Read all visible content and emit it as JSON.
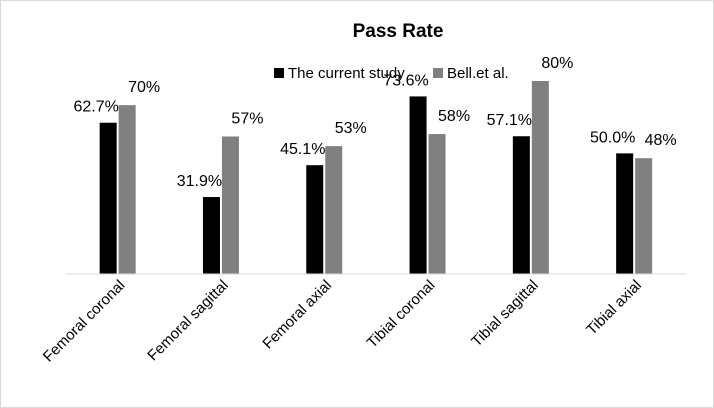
{
  "chart_data": {
    "type": "bar",
    "title": "Pass Rate",
    "xlabel": "",
    "ylabel": "",
    "ylim": [
      0,
      100
    ],
    "grid": false,
    "legend_position": "top",
    "categories": [
      "Femoral coronal",
      "Femoral sagittal",
      "Femoral axial",
      "Tibial coronal",
      "Tibial sagittal",
      "Tibial axial"
    ],
    "series": [
      {
        "name": "The current study",
        "color": "#000000",
        "values": [
          62.7,
          31.9,
          45.1,
          73.6,
          57.1,
          50.0
        ],
        "labels": [
          "62.7%",
          "31.9%",
          "45.1%",
          "73.6%",
          "57.1%",
          "50.0%"
        ]
      },
      {
        "name": "Bell.et al.",
        "color": "#808080",
        "values": [
          70,
          57,
          53,
          58,
          80,
          48
        ],
        "labels": [
          "70%",
          "57%",
          "53%",
          "58%",
          "80%",
          "48%"
        ]
      }
    ]
  }
}
